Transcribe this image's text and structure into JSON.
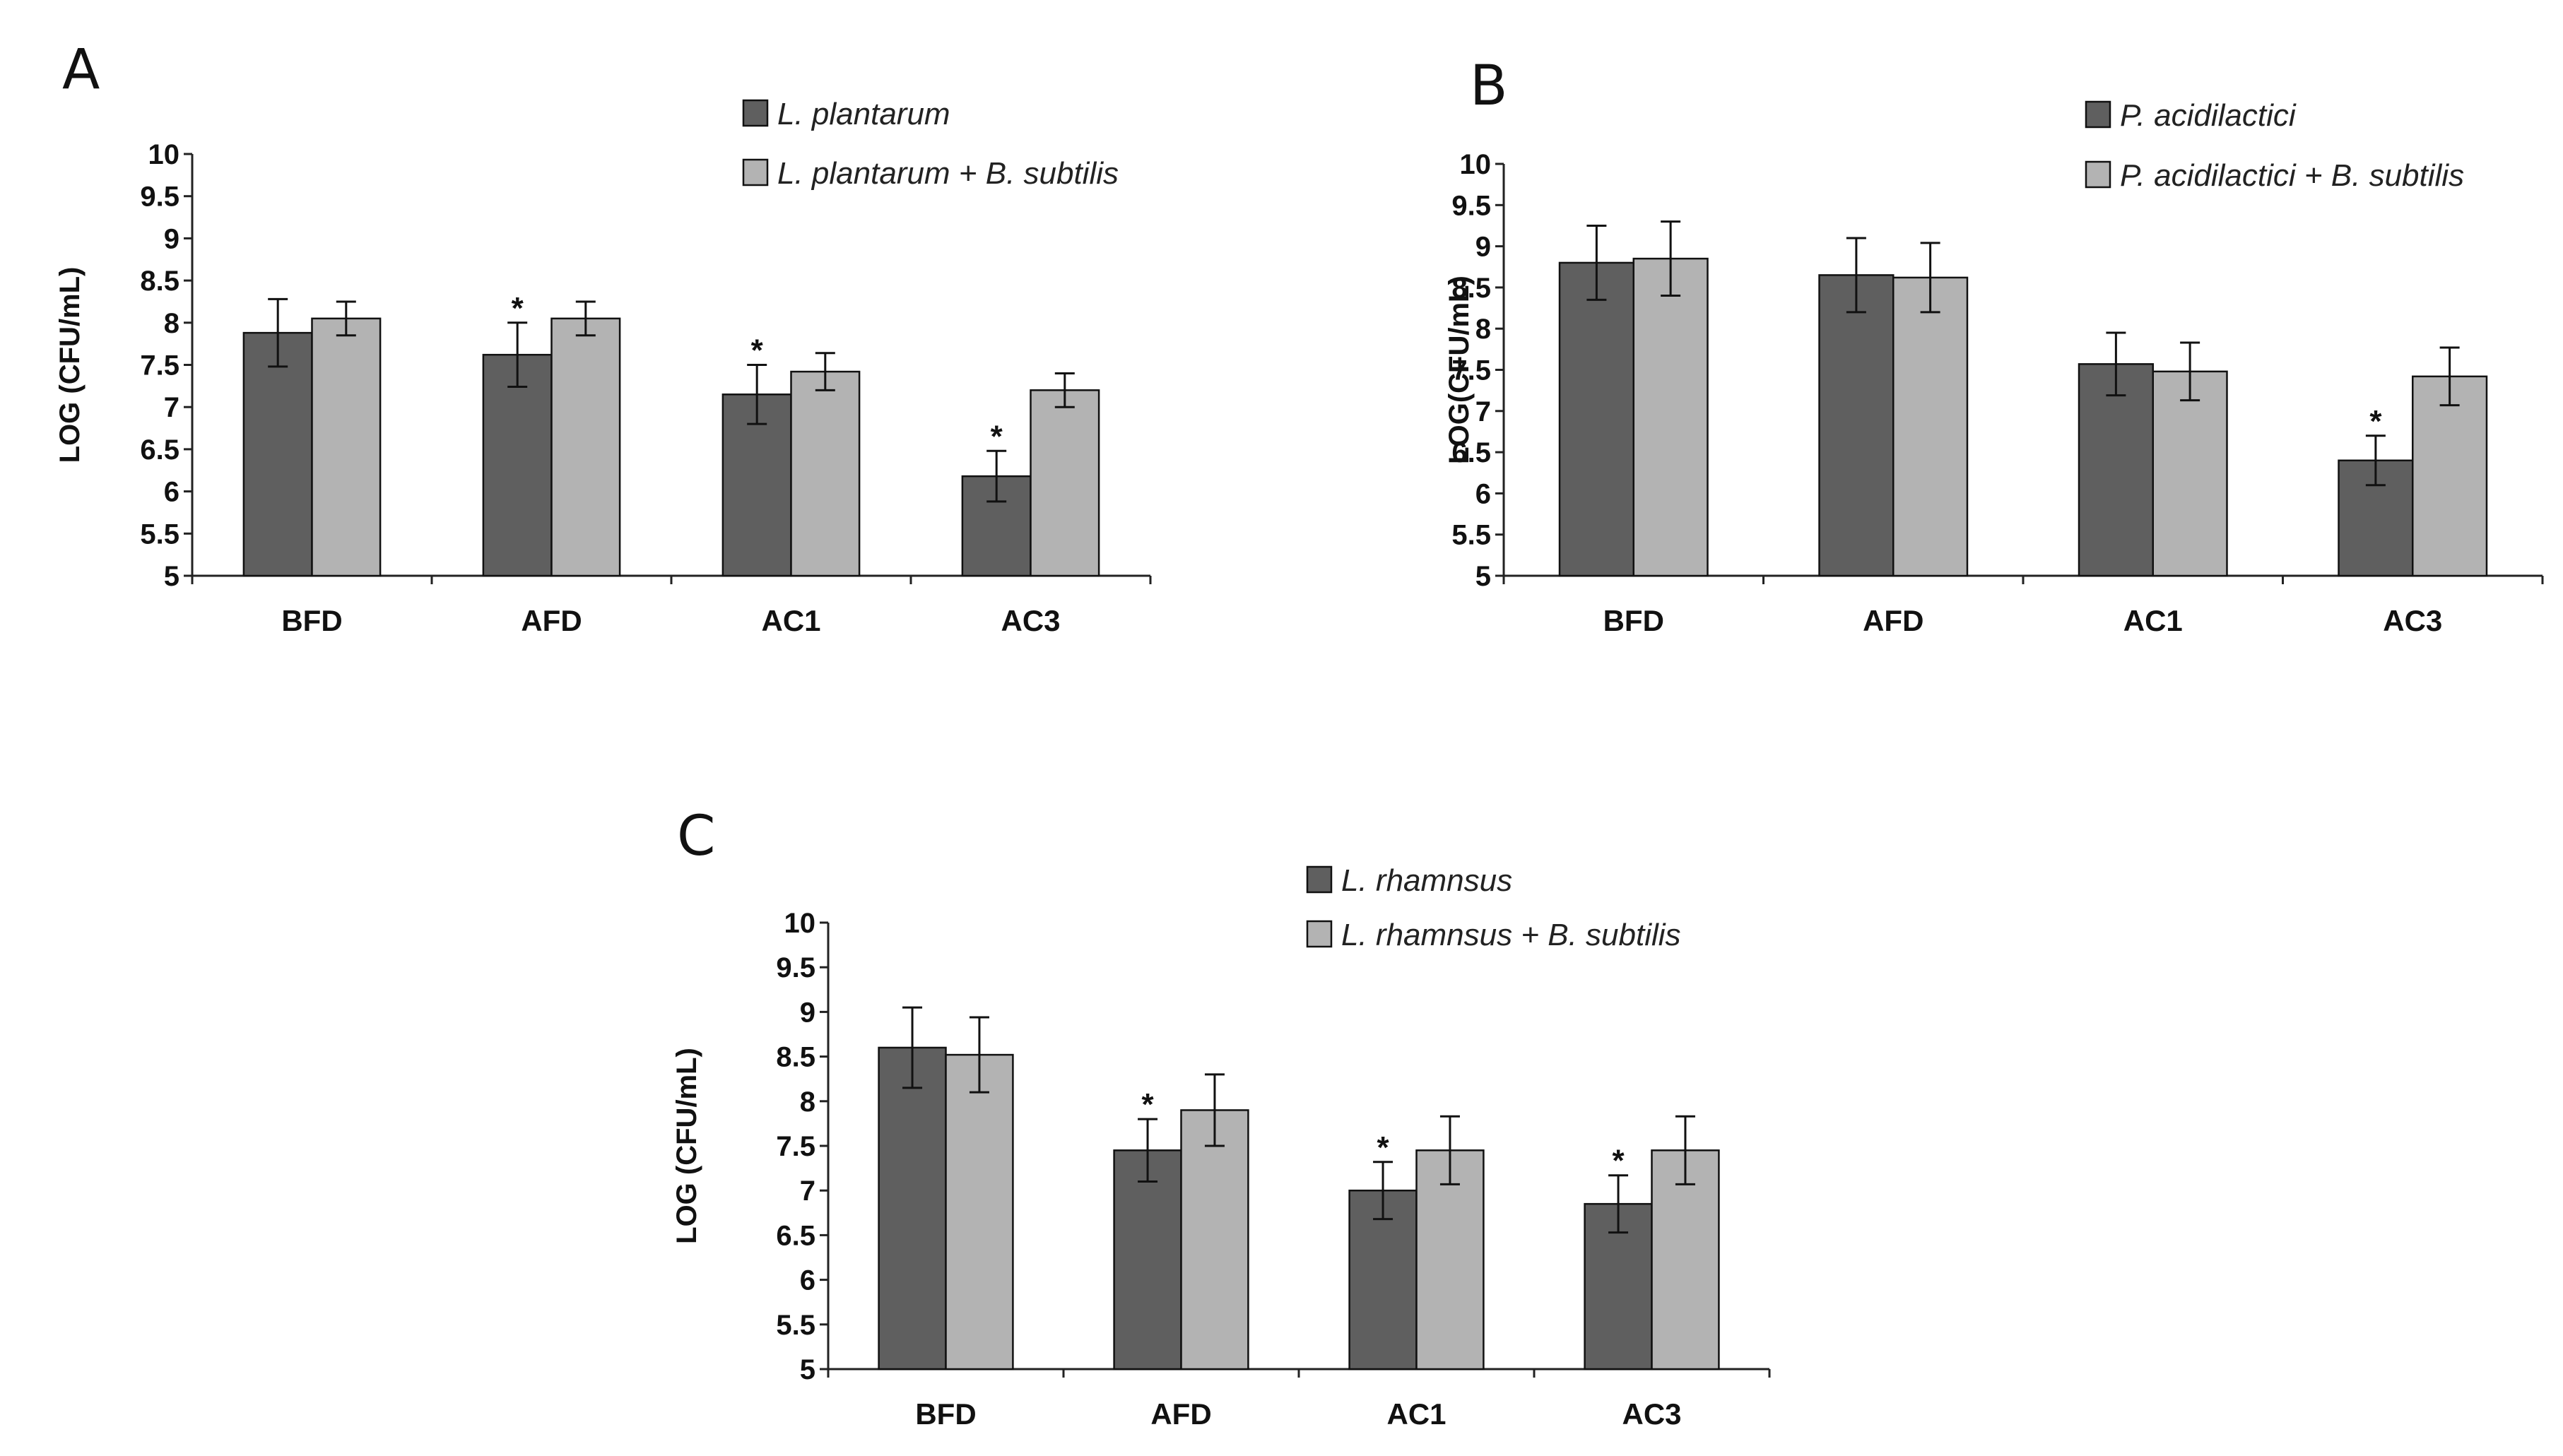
{
  "colors": {
    "series_dark": "#5f5f5f",
    "series_light": "#b3b3b3",
    "axis": "#222222"
  },
  "chart_data": [
    {
      "type": "bar",
      "panel": "A",
      "categories": [
        "BFD",
        "AFD",
        "AC1",
        "AC3"
      ],
      "series": [
        {
          "name": "L. plantarum",
          "values": [
            7.88,
            7.62,
            7.15,
            6.18
          ],
          "errors": [
            0.4,
            0.38,
            0.35,
            0.3
          ],
          "significant": [
            false,
            true,
            true,
            true
          ]
        },
        {
          "name": "L.  plantarum  + B. subtilis",
          "values": [
            8.05,
            8.05,
            7.42,
            7.2
          ],
          "errors": [
            0.2,
            0.2,
            0.22,
            0.2
          ],
          "significant": [
            false,
            false,
            false,
            false
          ]
        }
      ],
      "ylabel": "LOG (CFU/mL)",
      "ylim": [
        5,
        10
      ],
      "yticks": [
        "5",
        "5.5",
        "6",
        "6.5",
        "7",
        "7.5",
        "8",
        "8.5",
        "9",
        "9.5",
        "10"
      ],
      "significance_marker": "*",
      "legend": "top-right"
    },
    {
      "type": "bar",
      "panel": "B",
      "categories": [
        "BFD",
        "AFD",
        "AC1",
        "AC3"
      ],
      "series": [
        {
          "name": "P. acidilactici",
          "values": [
            8.8,
            8.65,
            7.57,
            6.4
          ],
          "errors": [
            0.45,
            0.45,
            0.38,
            0.3
          ],
          "significant": [
            false,
            false,
            false,
            true
          ]
        },
        {
          "name": "P. acidilactici  + B. subtilis",
          "values": [
            8.85,
            8.62,
            7.48,
            7.42
          ],
          "errors": [
            0.45,
            0.42,
            0.35,
            0.35
          ],
          "significant": [
            false,
            false,
            false,
            false
          ]
        }
      ],
      "ylabel": "LOG(CFU/mL)",
      "ylim": [
        5,
        10
      ],
      "yticks": [
        "5",
        "5.5",
        "6",
        "6.5",
        "7",
        "7.5",
        "8",
        "8.5",
        "9",
        "9.5",
        "10"
      ],
      "significance_marker": "*",
      "legend": "top-right"
    },
    {
      "type": "bar",
      "panel": "C",
      "categories": [
        "BFD",
        "AFD",
        "AC1",
        "AC3"
      ],
      "series": [
        {
          "name": "L. rhamnsus",
          "values": [
            8.6,
            7.45,
            7.0,
            6.85
          ],
          "errors": [
            0.45,
            0.35,
            0.32,
            0.32
          ],
          "significant": [
            false,
            true,
            true,
            true
          ]
        },
        {
          "name": "L. rhamnsus  + B. subtilis",
          "values": [
            8.52,
            7.9,
            7.45,
            7.45
          ],
          "errors": [
            0.42,
            0.4,
            0.38,
            0.38
          ],
          "significant": [
            false,
            false,
            false,
            false
          ]
        }
      ],
      "ylabel": "LOG (CFU/mL)",
      "ylim": [
        5,
        10
      ],
      "yticks": [
        "5",
        "5.5",
        "6",
        "6.5",
        "7",
        "7.5",
        "8",
        "8.5",
        "9",
        "9.5",
        "10"
      ],
      "significance_marker": "*",
      "legend": "top-right"
    }
  ]
}
